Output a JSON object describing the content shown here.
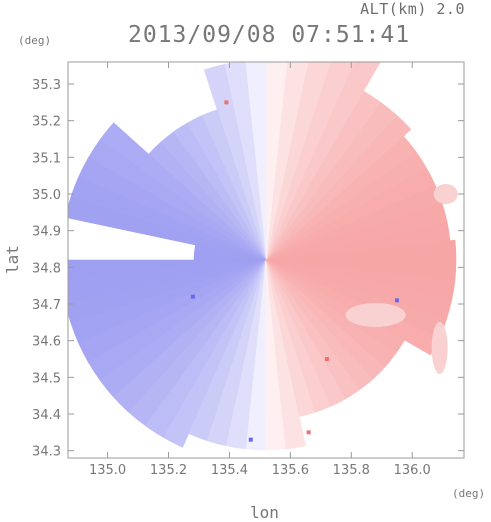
{
  "header": {
    "altitude": "ALT(km) 2.0",
    "timestamp": "2013/09/08 07:51:41"
  },
  "units": {
    "lat_unit": "(deg)",
    "lon_unit": "(deg)"
  },
  "chart_data": {
    "type": "heatmap",
    "title": "2013/09/08 07:51:41",
    "subtitle": "ALT(km) 2.0",
    "xlabel": "lon",
    "ylabel": "lat",
    "xlim": [
      134.87,
      136.17
    ],
    "ylim": [
      34.28,
      35.36
    ],
    "x_ticks": [
      135.0,
      135.2,
      135.4,
      135.6,
      135.8,
      136.0
    ],
    "x_tick_labels": [
      "135.0",
      "135.2",
      "135.4",
      "135.6",
      "135.8",
      "136.0"
    ],
    "y_ticks": [
      34.3,
      34.4,
      34.5,
      34.6,
      34.7,
      34.8,
      34.9,
      35.0,
      35.1,
      35.2,
      35.3
    ],
    "y_tick_labels": [
      "34.3",
      "34.4",
      "34.5",
      "34.6",
      "34.7",
      "34.8",
      "34.9",
      "35.0",
      "35.1",
      "35.2",
      "35.3"
    ],
    "grid": false,
    "radar_center": {
      "lon": 135.52,
      "lat": 34.82
    },
    "colors": {
      "toward": "#9f9ff2",
      "away": "#f7a6a6",
      "neutral": "#ffffff",
      "axis": "#777777"
    }
  }
}
